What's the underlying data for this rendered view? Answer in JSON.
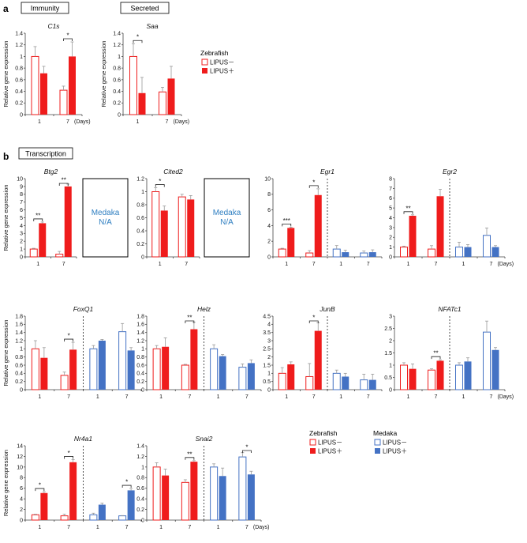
{
  "panel_labels": {
    "a": "a",
    "b": "b"
  },
  "group_boxes": {
    "immunity": "Immunity",
    "secreted": "Secreted",
    "transcription": "Transcription"
  },
  "ylabel": "Relative gene expression",
  "days_label": "(Days)",
  "medaka_na": {
    "line1": "Medaka",
    "line2": "N/A"
  },
  "legend_a": {
    "title": "Zebrafish",
    "minus": "LIPUS－",
    "plus": "LIPUS＋"
  },
  "legend_b": {
    "zebrafish_title": "Zebrafish",
    "medaka_title": "Medaka",
    "minus": "LIPUS－",
    "plus": "LIPUS＋"
  },
  "colors": {
    "zebrafish": "#ef1c1c",
    "medaka": "#4472c4",
    "error": "#999999"
  },
  "chart_data": [
    {
      "type": "bar",
      "title": "C1s",
      "ylabel": "Relative gene expression",
      "ylim": [
        0,
        1.4
      ],
      "yticks": [
        "0",
        "0.2",
        "0.4",
        "0.6",
        "0.8",
        "1",
        "1.2",
        "1.4"
      ],
      "categories": [
        "1",
        "7"
      ],
      "series": [
        {
          "name": "Zebrafish LIPUS－",
          "values": [
            1.0,
            0.42
          ],
          "errors": [
            0.17,
            0.07
          ]
        },
        {
          "name": "Zebrafish LIPUS＋",
          "values": [
            0.71,
            1.0
          ],
          "errors": [
            0.12,
            0.25
          ]
        }
      ],
      "significance": [
        {
          "group": 1,
          "label": "*"
        }
      ],
      "xlabel_extra": "(Days)"
    },
    {
      "type": "bar",
      "title": "Saa",
      "ylabel": "Relative gene expression",
      "ylim": [
        0,
        1.4
      ],
      "yticks": [
        "0",
        "0.2",
        "0.4",
        "0.6",
        "0.8",
        "1",
        "1.2",
        "1.4"
      ],
      "categories": [
        "1",
        "7"
      ],
      "series": [
        {
          "name": "Zebrafish LIPUS－",
          "values": [
            1.0,
            0.39
          ],
          "errors": [
            0.22,
            0.08
          ]
        },
        {
          "name": "Zebrafish LIPUS＋",
          "values": [
            0.37,
            0.62
          ],
          "errors": [
            0.27,
            0.21
          ]
        }
      ],
      "significance": [
        {
          "group": 0,
          "label": "*"
        }
      ],
      "xlabel_extra": "(Days)"
    },
    {
      "type": "bar",
      "title": "Btg2",
      "ylabel": "Relative gene expression",
      "ylim": [
        0,
        10
      ],
      "yticks": [
        "0",
        "1",
        "2",
        "3",
        "4",
        "5",
        "6",
        "7",
        "8",
        "9",
        "10"
      ],
      "categories": [
        "1",
        "7"
      ],
      "series": [
        {
          "name": "Zebrafish LIPUS－",
          "values": [
            1.0,
            0.35
          ],
          "errors": [
            0.1,
            0.35
          ]
        },
        {
          "name": "Zebrafish LIPUS＋",
          "values": [
            4.3,
            9.0
          ],
          "errors": [
            0.15,
            0.3
          ]
        }
      ],
      "significance": [
        {
          "group": 0,
          "label": "**"
        },
        {
          "group": 1,
          "label": "**"
        }
      ]
    },
    {
      "type": "bar",
      "title": "Cited2",
      "ylabel": "",
      "ylim": [
        0,
        1.2
      ],
      "yticks": [
        "0",
        "0.2",
        "0.4",
        "0.6",
        "0.8",
        "1",
        "1.2"
      ],
      "categories": [
        "1",
        "7"
      ],
      "series": [
        {
          "name": "Zebrafish LIPUS－",
          "values": [
            1.0,
            0.92
          ],
          "errors": [
            0.06,
            0.04
          ]
        },
        {
          "name": "Zebrafish LIPUS＋",
          "values": [
            0.71,
            0.88
          ],
          "errors": [
            0.07,
            0.06
          ]
        }
      ],
      "significance": [
        {
          "group": 0,
          "label": "*"
        }
      ]
    },
    {
      "type": "bar",
      "title": "Egr1",
      "ylabel": "",
      "ylim": [
        0,
        10
      ],
      "yticks": [
        "0",
        "2",
        "4",
        "6",
        "8",
        "10"
      ],
      "categories": [
        "1",
        "7",
        "1",
        "7"
      ],
      "series": [
        {
          "name": "LIPUS－",
          "values": [
            1.0,
            0.5,
            1.0,
            0.5
          ],
          "errors": [
            0.1,
            0.3,
            0.45,
            0.25
          ]
        },
        {
          "name": "LIPUS＋",
          "values": [
            3.7,
            7.9,
            0.6,
            0.6
          ],
          "errors": [
            0.1,
            0.8,
            0.25,
            0.3
          ]
        }
      ],
      "significance": [
        {
          "group": 0,
          "label": "***"
        },
        {
          "group": 1,
          "label": "*"
        }
      ]
    },
    {
      "type": "bar",
      "title": "Egr2",
      "ylabel": "",
      "ylim": [
        0,
        8
      ],
      "yticks": [
        "0",
        "1",
        "2",
        "3",
        "4",
        "5",
        "6",
        "7",
        "8"
      ],
      "categories": [
        "1",
        "7",
        "1",
        "7"
      ],
      "series": [
        {
          "name": "LIPUS－",
          "values": [
            1.0,
            0.8,
            1.0,
            2.2
          ],
          "errors": [
            0.1,
            0.35,
            0.5,
            0.75
          ]
        },
        {
          "name": "LIPUS＋",
          "values": [
            4.2,
            6.2,
            1.0,
            1.0
          ],
          "errors": [
            0.1,
            0.7,
            0.25,
            0.15
          ]
        }
      ],
      "significance": [
        {
          "group": 0,
          "label": "**"
        }
      ],
      "xlabel_extra": "(Days)"
    },
    {
      "type": "bar",
      "title": "FoxQ1",
      "ylabel": "Relative gene expression",
      "ylim": [
        0,
        1.8
      ],
      "yticks": [
        "0",
        "0.2",
        "0.4",
        "0.6",
        "0.8",
        "1",
        "1.2",
        "1.4",
        "1.6",
        "1.8"
      ],
      "categories": [
        "1",
        "7",
        "1",
        "7"
      ],
      "series": [
        {
          "name": "LIPUS－",
          "values": [
            1.0,
            0.35,
            1.0,
            1.42
          ],
          "errors": [
            0.2,
            0.08,
            0.08,
            0.2
          ]
        },
        {
          "name": "LIPUS＋",
          "values": [
            0.78,
            0.98,
            1.2,
            0.96
          ],
          "errors": [
            0.25,
            0.18,
            0.03,
            0.07
          ]
        }
      ],
      "significance": [
        {
          "group": 1,
          "label": "*"
        }
      ]
    },
    {
      "type": "bar",
      "title": "Helz",
      "ylabel": "",
      "ylim": [
        0,
        1.8
      ],
      "yticks": [
        "0",
        "0.2",
        "0.4",
        "0.6",
        "0.8",
        "1",
        "1.2",
        "1.4",
        "1.6",
        "1.8"
      ],
      "categories": [
        "1",
        "7",
        "1",
        "7"
      ],
      "series": [
        {
          "name": "LIPUS－",
          "values": [
            1.0,
            0.6,
            1.0,
            0.55
          ],
          "errors": [
            0.08,
            0.02,
            0.1,
            0.08
          ]
        },
        {
          "name": "LIPUS＋",
          "values": [
            1.05,
            1.48,
            0.82,
            0.65
          ],
          "errors": [
            0.22,
            0.17,
            0.04,
            0.08
          ]
        }
      ],
      "significance": [
        {
          "group": 1,
          "label": "**"
        }
      ]
    },
    {
      "type": "bar",
      "title": "JunB",
      "ylabel": "",
      "ylim": [
        0,
        4.5
      ],
      "yticks": [
        "0",
        "0.5",
        "1",
        "1.5",
        "2",
        "2.5",
        "3",
        "3.5",
        "4",
        "4.5"
      ],
      "categories": [
        "1",
        "7",
        "1",
        "7"
      ],
      "series": [
        {
          "name": "LIPUS－",
          "values": [
            1.0,
            0.8,
            1.0,
            0.6
          ],
          "errors": [
            0.35,
            0.8,
            0.2,
            0.35
          ]
        },
        {
          "name": "LIPUS＋",
          "values": [
            1.55,
            3.6,
            0.8,
            0.6
          ],
          "errors": [
            0.15,
            0.5,
            0.2,
            0.35
          ]
        }
      ],
      "significance": [
        {
          "group": 1,
          "label": "*"
        }
      ]
    },
    {
      "type": "bar",
      "title": "NFATc1",
      "ylabel": "",
      "ylim": [
        0,
        3
      ],
      "yticks": [
        "0",
        "0.5",
        "1",
        "1.5",
        "2",
        "2.5",
        "3"
      ],
      "categories": [
        "1",
        "7",
        "1",
        "7"
      ],
      "series": [
        {
          "name": "LIPUS－",
          "values": [
            1.0,
            0.8,
            1.0,
            2.35
          ],
          "errors": [
            0.1,
            0.05,
            0.1,
            0.45
          ]
        },
        {
          "name": "LIPUS＋",
          "values": [
            0.85,
            1.18,
            1.15,
            1.62
          ],
          "errors": [
            0.2,
            0.04,
            0.15,
            0.1
          ]
        }
      ],
      "significance": [
        {
          "group": 1,
          "label": "**"
        }
      ],
      "xlabel_extra": "(Days)"
    },
    {
      "type": "bar",
      "title": "Nr4a1",
      "ylabel": "Relative gene expression",
      "ylim": [
        0,
        14
      ],
      "yticks": [
        "0",
        "2",
        "4",
        "6",
        "8",
        "10",
        "12",
        "14"
      ],
      "categories": [
        "1",
        "7",
        "1",
        "7"
      ],
      "series": [
        {
          "name": "LIPUS－",
          "values": [
            1.0,
            0.8,
            1.0,
            0.8
          ],
          "errors": [
            0.1,
            0.3,
            0.3,
            0.05
          ]
        },
        {
          "name": "LIPUS＋",
          "values": [
            5.1,
            10.9,
            2.9,
            5.6
          ],
          "errors": [
            0.25,
            0.5,
            0.3,
            0.35
          ]
        }
      ],
      "significance": [
        {
          "group": 0,
          "label": "*"
        },
        {
          "group": 1,
          "label": "*"
        },
        {
          "group": 3,
          "label": "*"
        }
      ]
    },
    {
      "type": "bar",
      "title": "Snai2",
      "ylabel": "",
      "ylim": [
        0,
        1.4
      ],
      "yticks": [
        "0",
        "0.2",
        "0.4",
        "0.6",
        "0.8",
        "1",
        "1.2",
        "1.4"
      ],
      "categories": [
        "1",
        "7",
        "1",
        "7"
      ],
      "series": [
        {
          "name": "LIPUS－",
          "values": [
            1.0,
            0.71,
            1.0,
            1.19
          ],
          "errors": [
            0.08,
            0.05,
            0.06,
            0.08
          ]
        },
        {
          "name": "LIPUS＋",
          "values": [
            0.84,
            1.1,
            0.83,
            0.86
          ],
          "errors": [
            0.12,
            0.02,
            0.15,
            0.06
          ]
        }
      ],
      "significance": [
        {
          "group": 1,
          "label": "**"
        },
        {
          "group": 3,
          "label": "*"
        }
      ],
      "xlabel_extra": "(Days)"
    }
  ]
}
